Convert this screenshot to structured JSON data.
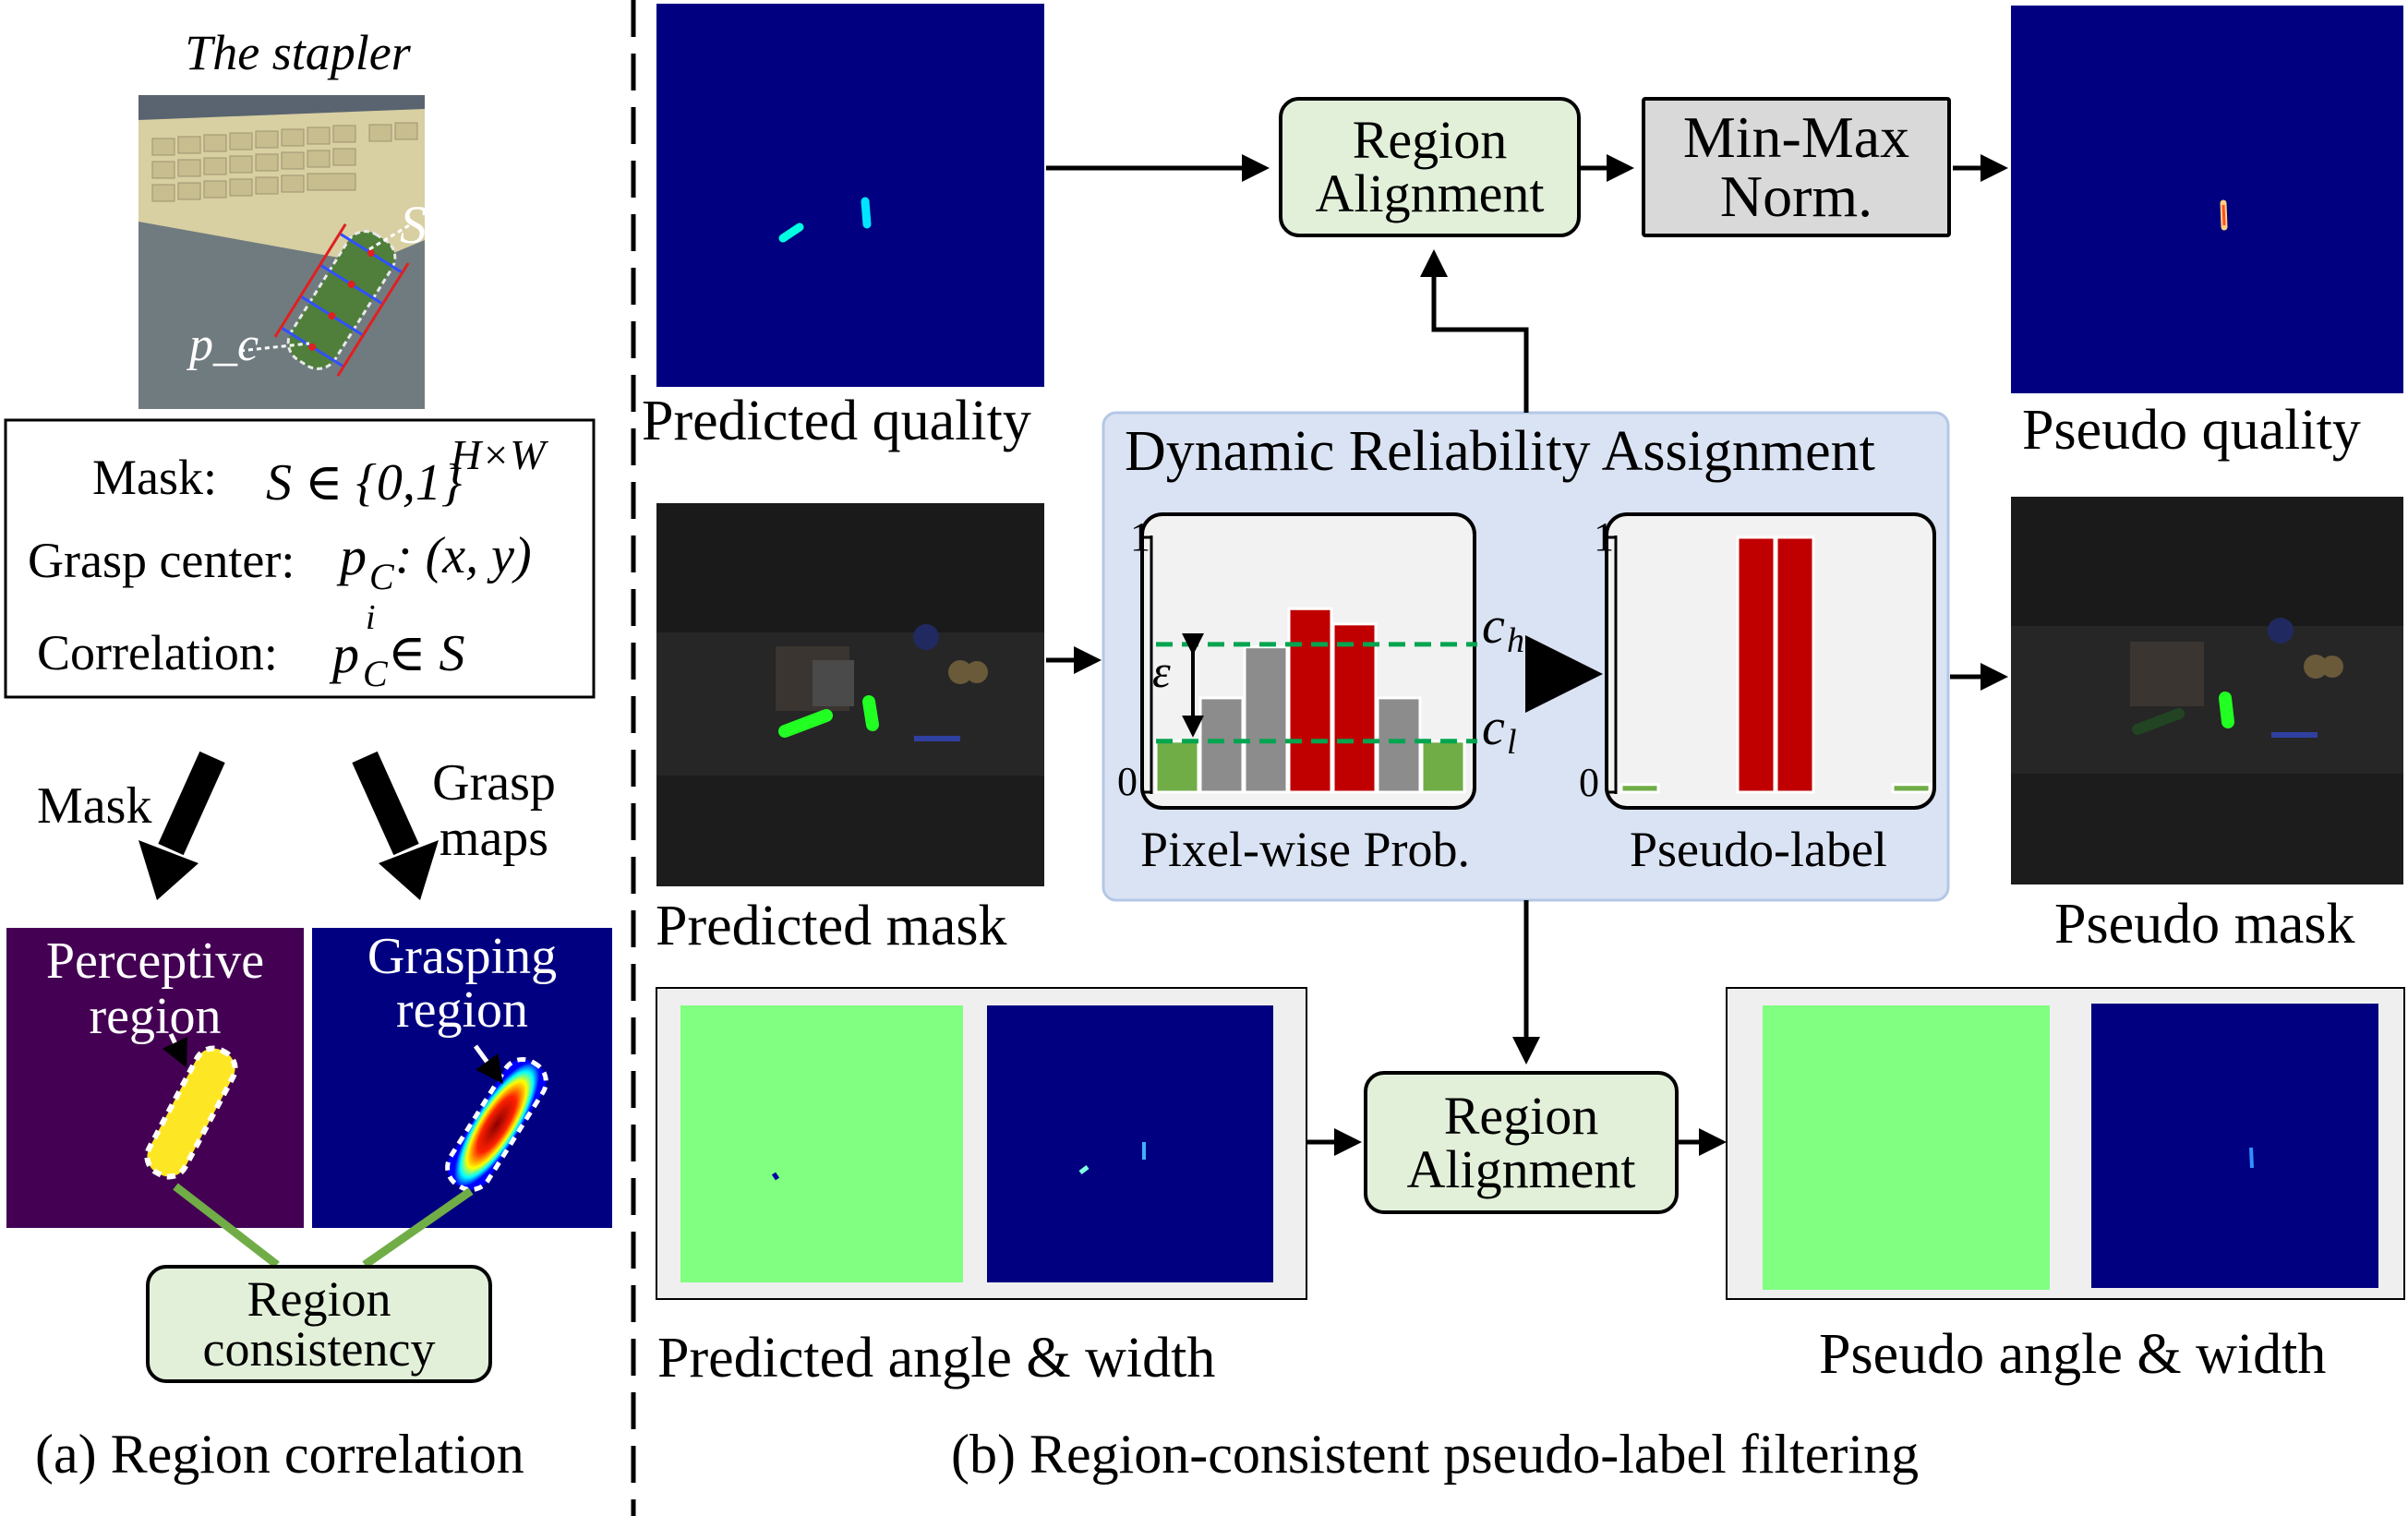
{
  "left_panel": {
    "image_title": "The stapler",
    "symbols": {
      "mask": "S",
      "center": "p_c"
    },
    "definitions": {
      "mask_label": "Mask:",
      "mask_expr": "S ∈ {0,1}",
      "mask_sup": "H×W",
      "center_label": "Grasp center:",
      "center_expr": "p",
      "center_sub": "C",
      "center_tail": ": (x, y)",
      "corr_label": "Correlation:",
      "corr_expr": "p",
      "corr_sup": "i",
      "corr_sub": "C",
      "corr_tail": " ∈ S"
    },
    "arrow_left_label": "Mask",
    "arrow_right_label_line1": "Grasp",
    "arrow_right_label_line2": "maps",
    "perceptive_line1": "Perceptive",
    "perceptive_line2": "region",
    "grasping_line1": "Grasping",
    "grasping_line2": "region",
    "consistency_line1": "Region",
    "consistency_line2": "consistency",
    "caption": "(a)  Region correlation"
  },
  "right_panel": {
    "predicted_quality": "Predicted quality",
    "region_alignment_top_line1": "Region",
    "region_alignment_top_line2": "Alignment",
    "minmax_line1": "Min-Max",
    "minmax_line2": "Norm.",
    "pseudo_quality": "Pseudo quality",
    "dra_title": "Dynamic Reliability Assignment",
    "pixel_prob": "Pixel-wise Prob.",
    "pseudo_label": "Pseudo-label",
    "axis_one": "1",
    "axis_zero": "0",
    "ch": "c",
    "ch_sub": "h",
    "cl": "c",
    "cl_sub": "l",
    "epsilon": "ε",
    "predicted_mask": "Predicted mask",
    "pseudo_mask": "Pseudo mask",
    "region_alignment_bottom_line1": "Region",
    "region_alignment_bottom_line2": "Alignment",
    "predicted_angle_width": "Predicted angle & width",
    "pseudo_angle_width": "Pseudo angle & width",
    "caption": "(b) Region-consistent pseudo-label filtering"
  },
  "chart_data": [
    {
      "type": "bar",
      "title": "Pixel-wise Prob.",
      "values": [
        0.2,
        0.37,
        0.57,
        0.72,
        0.66,
        0.37,
        0.2
      ],
      "colors": [
        "#70ad47",
        "#8c8c8c",
        "#8c8c8c",
        "#c00000",
        "#c00000",
        "#8c8c8c",
        "#70ad47"
      ],
      "thresholds": {
        "c_h": 0.58,
        "c_l": 0.2
      },
      "ylim": [
        0,
        1
      ]
    },
    {
      "type": "bar",
      "title": "Pseudo-label",
      "values": [
        0.03,
        0,
        0,
        1,
        1,
        0,
        0,
        0.03
      ],
      "colors": [
        "#70ad47",
        "#70ad47",
        "#70ad47",
        "#c00000",
        "#c00000",
        "#70ad47",
        "#70ad47",
        "#70ad47"
      ],
      "ylim": [
        0,
        1
      ]
    }
  ],
  "colors": {
    "box_green": "#e2f0d9",
    "box_grey": "#d9d9d9",
    "dra_bg": "#dae3f3",
    "navy": "#000080",
    "angle_green": "#80ff80",
    "perceptive_purple": "#440154"
  }
}
